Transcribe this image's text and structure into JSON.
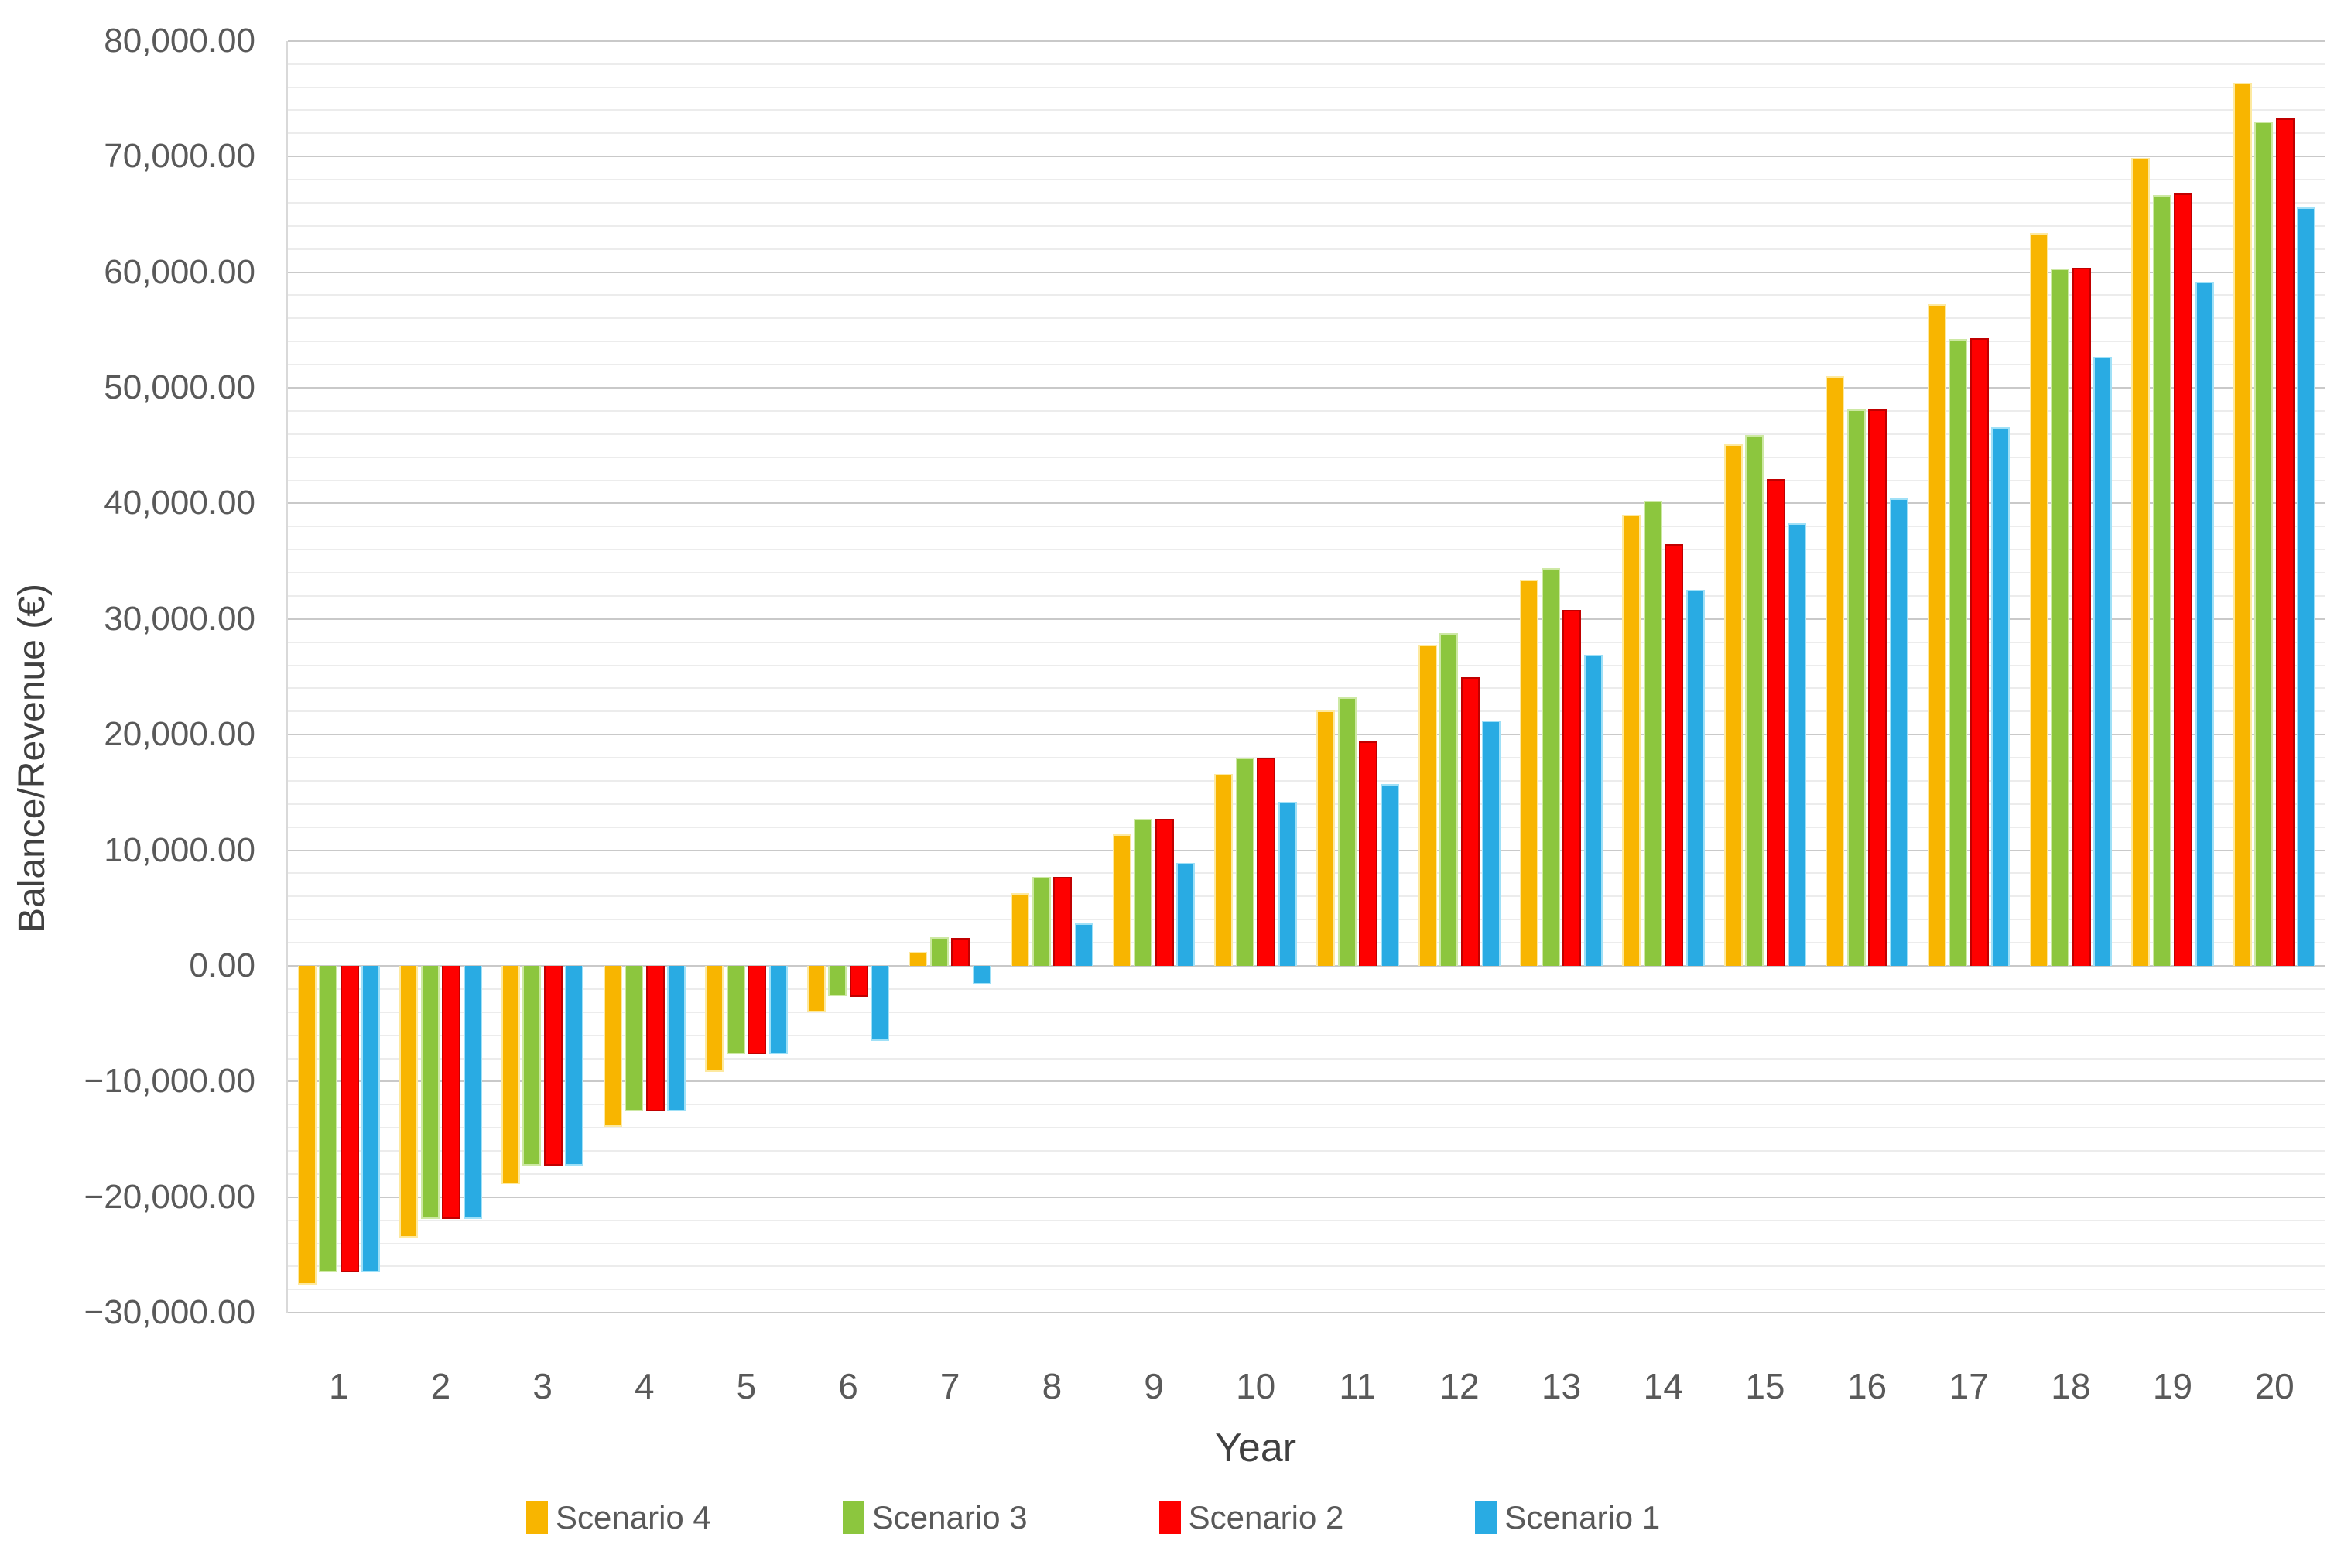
{
  "chart_data": {
    "type": "bar",
    "title": "",
    "xlabel": "Year",
    "ylabel": "Balance/Revenue (€)",
    "ylim": [
      -30000,
      80000
    ],
    "y_major_step": 10000,
    "y_minor_step": 2000,
    "y_tick_format": "thousands with two decimals, e.g. 80,000.00 and −30,000.00",
    "grid": "major and minor horizontal gridlines",
    "legend_position": "bottom",
    "categories": [
      1,
      2,
      3,
      4,
      5,
      6,
      7,
      8,
      9,
      10,
      11,
      12,
      13,
      14,
      15,
      16,
      17,
      18,
      19,
      20
    ],
    "series": [
      {
        "name": "Scenario 4",
        "color": "#F8B500",
        "edge": "#FDE9A0",
        "values": [
          -27600,
          -23500,
          -18900,
          -13900,
          -9200,
          -4000,
          1200,
          6300,
          11400,
          16600,
          22100,
          27800,
          33400,
          39000,
          45100,
          51000,
          57200,
          63400,
          69900,
          76400
        ]
      },
      {
        "name": "Scenario 3",
        "color": "#8CC63E",
        "edge": "#CDE8A4",
        "values": [
          -26500,
          -21900,
          -17300,
          -12600,
          -7600,
          -2600,
          2500,
          7700,
          12700,
          18000,
          23200,
          28800,
          34400,
          40200,
          45900,
          48100,
          54200,
          60300,
          66700,
          73000
        ]
      },
      {
        "name": "Scenario 2",
        "color": "#FE0000",
        "edge": "#C00000",
        "values": [
          -26500,
          -21900,
          -17300,
          -12600,
          -7600,
          -2700,
          2400,
          7700,
          12700,
          18000,
          19400,
          25000,
          30800,
          36500,
          42100,
          48100,
          54300,
          60400,
          66800,
          73300
        ]
      },
      {
        "name": "Scenario 1",
        "color": "#29ABE3",
        "edge": "#9FE0F7",
        "values": [
          -26500,
          -21900,
          -17300,
          -12600,
          -7600,
          -6500,
          -1600,
          3700,
          8900,
          14200,
          15700,
          21200,
          26900,
          32500,
          38300,
          40400,
          46600,
          52700,
          59200,
          65600
        ]
      }
    ]
  }
}
